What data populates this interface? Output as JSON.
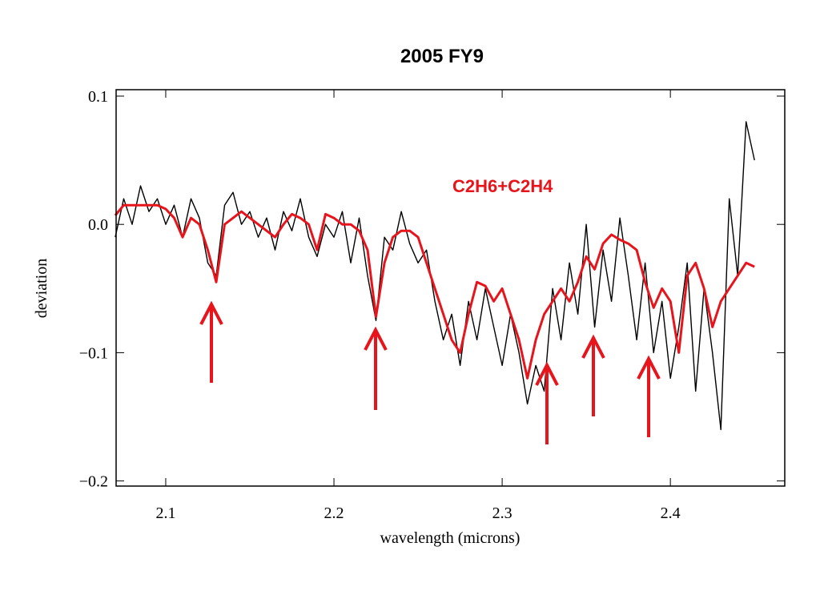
{
  "chart_data": {
    "type": "line",
    "title": "2005 FY9",
    "x_label": "wavelength (microns)",
    "y_label": "deviation",
    "annotation": "C2H6+C2H4",
    "annotation_color": "#e8141b",
    "x": [
      2.07,
      2.075,
      2.08,
      2.085,
      2.09,
      2.095,
      2.1,
      2.105,
      2.11,
      2.115,
      2.12,
      2.125,
      2.13,
      2.135,
      2.14,
      2.145,
      2.15,
      2.155,
      2.16,
      2.165,
      2.17,
      2.175,
      2.18,
      2.185,
      2.19,
      2.195,
      2.2,
      2.205,
      2.21,
      2.215,
      2.22,
      2.225,
      2.23,
      2.235,
      2.24,
      2.245,
      2.25,
      2.255,
      2.26,
      2.265,
      2.27,
      2.275,
      2.28,
      2.285,
      2.29,
      2.295,
      2.3,
      2.305,
      2.31,
      2.315,
      2.32,
      2.325,
      2.33,
      2.335,
      2.34,
      2.345,
      2.35,
      2.355,
      2.36,
      2.365,
      2.37,
      2.375,
      2.38,
      2.385,
      2.39,
      2.395,
      2.4,
      2.405,
      2.41,
      2.415,
      2.42,
      2.425,
      2.43,
      2.435,
      2.44,
      2.445,
      2.45
    ],
    "series": [
      {
        "color": "#000000",
        "values": [
          -0.01,
          0.02,
          0.0,
          0.03,
          0.01,
          0.02,
          0.0,
          0.015,
          -0.01,
          0.02,
          0.005,
          -0.03,
          -0.04,
          0.015,
          0.025,
          0.0,
          0.01,
          -0.01,
          0.005,
          -0.02,
          0.01,
          -0.005,
          0.02,
          -0.01,
          -0.025,
          0.0,
          -0.01,
          0.01,
          -0.03,
          0.005,
          -0.04,
          -0.075,
          -0.01,
          -0.02,
          0.01,
          -0.015,
          -0.03,
          -0.02,
          -0.06,
          -0.09,
          -0.07,
          -0.11,
          -0.06,
          -0.09,
          -0.05,
          -0.08,
          -0.11,
          -0.07,
          -0.1,
          -0.14,
          -0.11,
          -0.13,
          -0.05,
          -0.09,
          -0.03,
          -0.07,
          0.0,
          -0.08,
          -0.02,
          -0.06,
          0.005,
          -0.04,
          -0.09,
          -0.03,
          -0.1,
          -0.06,
          -0.12,
          -0.08,
          -0.03,
          -0.13,
          -0.05,
          -0.1,
          -0.16,
          0.02,
          -0.04,
          0.08,
          0.05
        ]
      },
      {
        "color": "#e8141b",
        "values": [
          0.007,
          0.015,
          0.015,
          0.015,
          0.015,
          0.015,
          0.012,
          0.005,
          -0.01,
          0.005,
          0.0,
          -0.02,
          -0.045,
          0.0,
          0.005,
          0.01,
          0.005,
          0.0,
          -0.005,
          -0.01,
          0.0,
          0.008,
          0.005,
          0.0,
          -0.02,
          0.008,
          0.005,
          0.0,
          0.0,
          -0.005,
          -0.02,
          -0.072,
          -0.03,
          -0.01,
          -0.005,
          -0.005,
          -0.01,
          -0.03,
          -0.05,
          -0.07,
          -0.09,
          -0.1,
          -0.07,
          -0.045,
          -0.048,
          -0.06,
          -0.05,
          -0.07,
          -0.09,
          -0.12,
          -0.09,
          -0.07,
          -0.06,
          -0.05,
          -0.06,
          -0.045,
          -0.025,
          -0.035,
          -0.015,
          -0.008,
          -0.012,
          -0.015,
          -0.02,
          -0.045,
          -0.065,
          -0.05,
          -0.06,
          -0.1,
          -0.04,
          -0.03,
          -0.05,
          -0.08,
          -0.06,
          -0.05,
          -0.04,
          -0.03,
          -0.033
        ]
      }
    ],
    "xlim": [
      2.0705,
      2.468
    ],
    "ylim": [
      -0.204,
      0.105
    ],
    "xticks": [
      2.1,
      2.2,
      2.3,
      2.4
    ],
    "yticks": [
      {
        "value": 0.1,
        "label": "0.1"
      },
      {
        "value": 0,
        "label": "0.0"
      },
      {
        "value": -0.1,
        "label": "−0.1"
      },
      {
        "value": -0.2,
        "label": "−0.2"
      }
    ]
  }
}
